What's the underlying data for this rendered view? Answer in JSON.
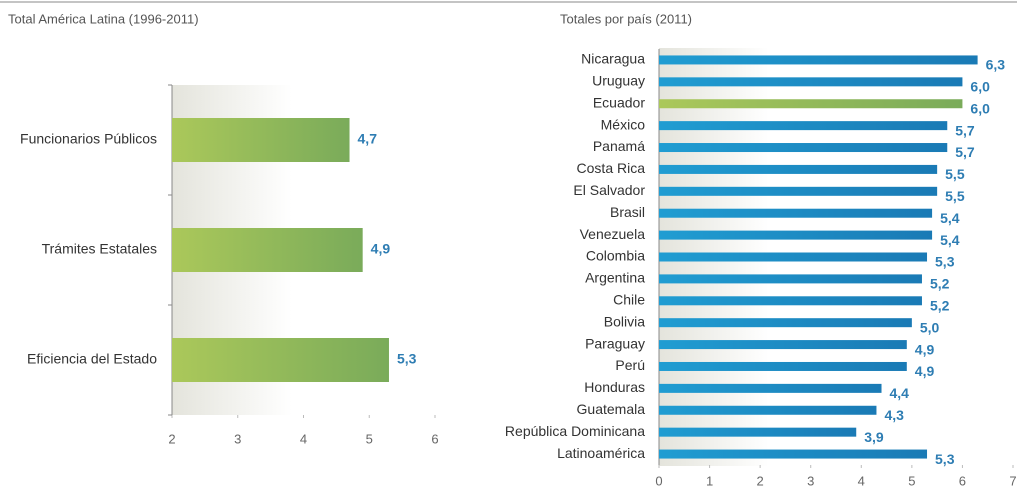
{
  "chart_data": [
    {
      "type": "bar",
      "orientation": "horizontal",
      "title": "Total América Latina (1996-2011)",
      "categories": [
        "Funcionarios Públicos",
        "Trámites Estatales",
        "Eficiencia del Estado"
      ],
      "values": [
        4.7,
        4.9,
        5.3
      ],
      "value_labels": [
        "4,7",
        "4,9",
        "5,3"
      ],
      "color": "#7aab5a",
      "xlim": [
        2,
        6
      ],
      "xticks": [
        2,
        3,
        4,
        5,
        6
      ]
    },
    {
      "type": "bar",
      "orientation": "horizontal",
      "title": "Totales por país (2011)",
      "categories": [
        "Nicaragua",
        "Uruguay",
        "Ecuador",
        "México",
        "Panamá",
        "Costa Rica",
        "El Salvador",
        "Brasil",
        "Venezuela",
        "Colombia",
        "Argentina",
        "Chile",
        "Bolivia",
        "Paraguay",
        "Perú",
        "Honduras",
        "Guatemala",
        "República Dominicana",
        "Latinoamérica"
      ],
      "values": [
        6.3,
        6.0,
        6.0,
        5.7,
        5.7,
        5.5,
        5.5,
        5.4,
        5.4,
        5.3,
        5.2,
        5.2,
        5.0,
        4.9,
        4.9,
        4.4,
        4.3,
        3.9,
        5.3
      ],
      "value_labels": [
        "6,3",
        "6,0",
        "6,0",
        "5,7",
        "5,7",
        "5,5",
        "5,5",
        "5,4",
        "5,4",
        "5,3",
        "5,2",
        "5,2",
        "5,0",
        "4,9",
        "4,9",
        "4,4",
        "4,3",
        "3,9",
        "5,3"
      ],
      "colors": [
        "#1a7ab5",
        "#1a7ab5",
        "#7aab5a",
        "#1a7ab5",
        "#1a7ab5",
        "#1a7ab5",
        "#1a7ab5",
        "#1a7ab5",
        "#1a7ab5",
        "#1a7ab5",
        "#1a7ab5",
        "#1a7ab5",
        "#1a7ab5",
        "#1a7ab5",
        "#1a7ab5",
        "#1a7ab5",
        "#1a7ab5",
        "#1a7ab5",
        "#1a7ab5"
      ],
      "xlim": [
        0,
        7
      ],
      "xticks": [
        0,
        1,
        2,
        3,
        4,
        5,
        6,
        7
      ]
    }
  ]
}
